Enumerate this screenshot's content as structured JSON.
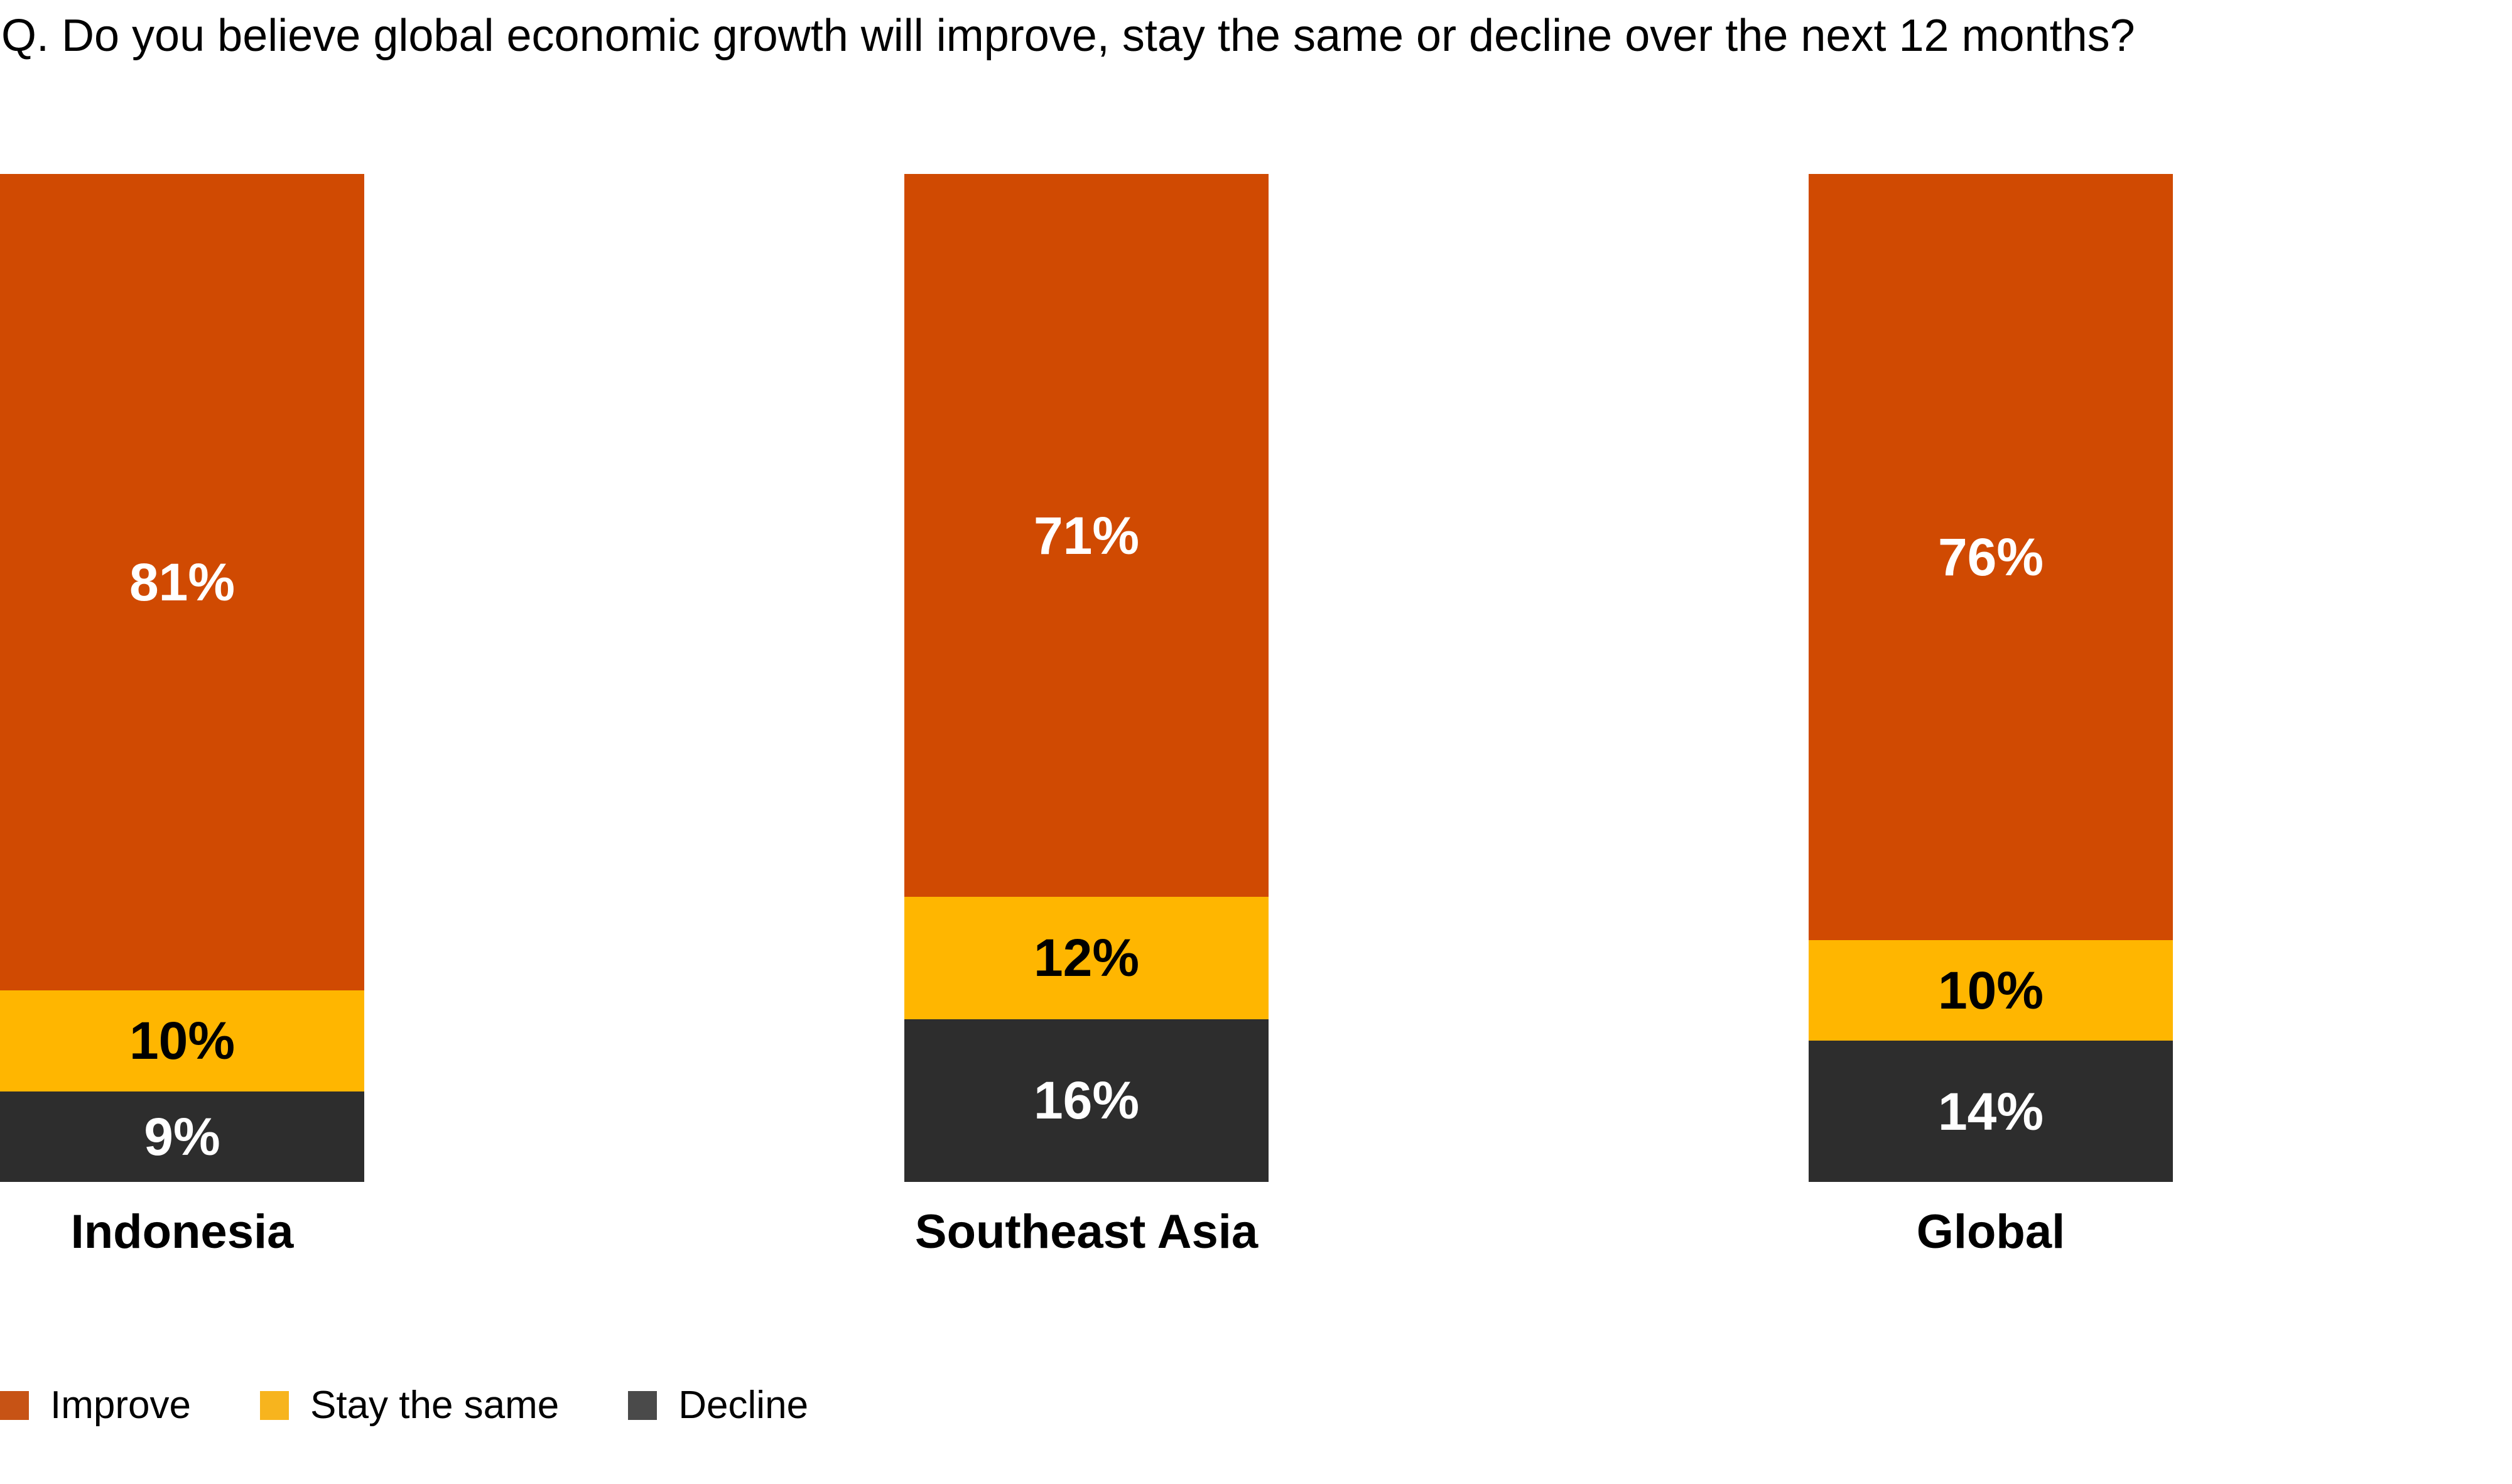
{
  "title": "Q. Do you believe global economic growth will improve, stay the same or decline over the next 12 months?",
  "colors": {
    "background": "#FFFFFF",
    "title_text": "#000000",
    "improve": "#D04A02",
    "stay_the_same": "#FFB600",
    "decline": "#2D2D2D",
    "label_on_improve": "#FFFFFF",
    "label_on_stay_the_same": "#000000",
    "label_on_decline": "#FFFFFF"
  },
  "chart_data": {
    "type": "bar",
    "stacked": true,
    "orientation": "vertical",
    "normalized_to_full_height": true,
    "title": "Q. Do you believe global economic growth will improve, stay the same or decline over the next 12 months?",
    "categories": [
      "Indonesia",
      "Southeast Asia",
      "Global"
    ],
    "series": [
      {
        "name": "Improve",
        "color": "#D04A02",
        "label_color": "#FFFFFF",
        "swatch_color": "#C75315",
        "values": [
          81,
          71,
          76
        ],
        "labels": [
          "81%",
          "71%",
          "76%"
        ]
      },
      {
        "name": "Stay the same",
        "color": "#FFB600",
        "label_color": "#000000",
        "swatch_color": "#F7B41E",
        "values": [
          10,
          12,
          10
        ],
        "labels": [
          "10%",
          "12%",
          "10%"
        ]
      },
      {
        "name": "Decline",
        "color": "#2D2D2D",
        "label_color": "#FFFFFF",
        "swatch_color": "#4A4A4A",
        "values": [
          9,
          16,
          14
        ],
        "labels": [
          "9%",
          "16%",
          "14%"
        ]
      }
    ],
    "value_format": "percent",
    "axes": "none",
    "gridlines": false,
    "legend_position": "bottom-left"
  },
  "legend": {
    "items": [
      {
        "label": "Improve"
      },
      {
        "label": "Stay the same"
      },
      {
        "label": "Decline"
      }
    ]
  }
}
